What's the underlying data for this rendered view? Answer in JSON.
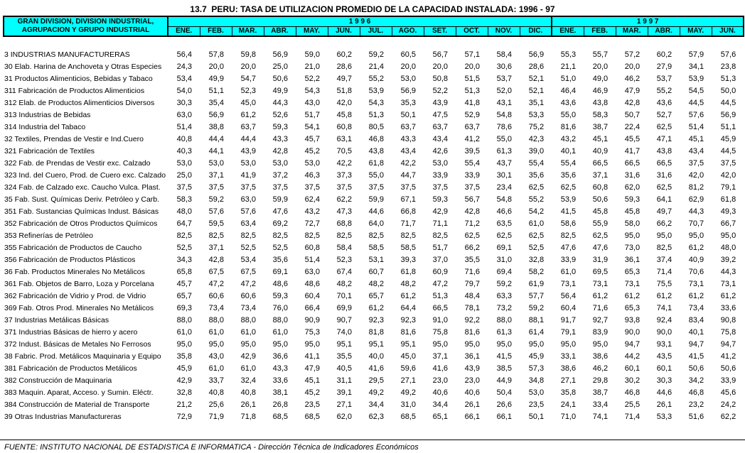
{
  "title": "13.7  PERU: TASA DE UTILIZACION PROMEDIO DE LA CAPACIDAD INSTALADA: 1996 - 97",
  "colors": {
    "header_bg": "#00FFFF",
    "text": "#000000",
    "page_bg": "#FFFFFF"
  },
  "table": {
    "row_header_line1": "GRAN DIVISION, DIVISION INDUSTRIAL,",
    "row_header_line2": "AGRUPACION Y GRUPO INDUSTRIAL",
    "year_groups": [
      {
        "year": "1 9 9 6",
        "months": [
          "ENE.",
          "FEB.",
          "MAR.",
          "ABR.",
          "MAY.",
          "JUN.",
          "JUL.",
          "AGO.",
          "SET.",
          "OCT.",
          "NOV.",
          "DIC."
        ]
      },
      {
        "year": "1 9 9 7",
        "months": [
          "ENE.",
          "FEB.",
          "MAR.",
          "ABR.",
          "MAY.",
          "JUN."
        ]
      }
    ],
    "rows": [
      {
        "label": "3 INDUSTRIAS MANUFACTURERAS",
        "values": [
          "56,4",
          "57,8",
          "59,8",
          "56,9",
          "59,0",
          "60,2",
          "59,2",
          "60,5",
          "56,7",
          "57,1",
          "58,4",
          "56,9",
          "55,3",
          "55,7",
          "57,2",
          "60,2",
          "57,9",
          "57,6"
        ]
      },
      {
        "label": "30 Elab. Harina de Anchoveta y Otras Especies",
        "values": [
          "24,3",
          "20,0",
          "20,0",
          "25,0",
          "21,0",
          "28,6",
          "21,4",
          "20,0",
          "20,0",
          "20,0",
          "30,6",
          "28,6",
          "21,1",
          "20,0",
          "20,0",
          "27,9",
          "34,1",
          "23,8"
        ]
      },
      {
        "label": "31 Productos Alimenticios, Bebidas y Tabaco",
        "values": [
          "53,4",
          "49,9",
          "54,7",
          "50,6",
          "52,2",
          "49,7",
          "55,2",
          "53,0",
          "50,8",
          "51,5",
          "53,7",
          "52,1",
          "51,0",
          "49,0",
          "46,2",
          "53,7",
          "53,9",
          "51,3"
        ]
      },
      {
        "label": "311 Fabricación de Productos Alimenticios",
        "values": [
          "54,0",
          "51,1",
          "52,3",
          "49,9",
          "54,3",
          "51,8",
          "53,9",
          "56,9",
          "52,2",
          "51,3",
          "52,0",
          "52,1",
          "46,4",
          "46,9",
          "47,9",
          "55,2",
          "54,5",
          "50,0"
        ]
      },
      {
        "label": "312 Elab. de Productos Alimenticios Diversos",
        "values": [
          "30,3",
          "35,4",
          "45,0",
          "44,3",
          "43,0",
          "42,0",
          "54,3",
          "35,3",
          "43,9",
          "41,8",
          "43,1",
          "35,1",
          "43,6",
          "43,8",
          "42,8",
          "43,6",
          "44,5",
          "44,5"
        ]
      },
      {
        "label": "313 Industrias de Bebidas",
        "values": [
          "63,0",
          "56,9",
          "61,2",
          "52,6",
          "51,7",
          "45,8",
          "51,3",
          "50,1",
          "47,5",
          "52,9",
          "54,8",
          "53,3",
          "55,0",
          "58,3",
          "50,7",
          "52,7",
          "57,6",
          "56,9"
        ]
      },
      {
        "label": "314 Industria del Tabaco",
        "values": [
          "51,4",
          "38,8",
          "63,7",
          "59,3",
          "54,1",
          "60,8",
          "80,5",
          "63,7",
          "63,7",
          "63,7",
          "78,6",
          "75,2",
          "81,6",
          "38,7",
          "22,4",
          "62,5",
          "51,4",
          "51,1"
        ]
      },
      {
        "label": "32 Textiles, Prendas de Vestir e Ind.Cuero",
        "values": [
          "40,8",
          "44,4",
          "44,4",
          "43,3",
          "45,7",
          "63,1",
          "46,8",
          "43,3",
          "43,4",
          "41,2",
          "55,0",
          "42,3",
          "43,2",
          "45,1",
          "45,5",
          "47,1",
          "45,1",
          "45,9"
        ]
      },
      {
        "label": "321 Fabricación de Textiles",
        "values": [
          "40,3",
          "44,1",
          "43,9",
          "42,8",
          "45,2",
          "70,5",
          "43,8",
          "43,4",
          "42,6",
          "39,5",
          "61,3",
          "39,0",
          "40,1",
          "40,9",
          "41,7",
          "43,8",
          "43,4",
          "44,5"
        ]
      },
      {
        "label": "322 Fab. de Prendas de Vestir exc. Calzado",
        "values": [
          "53,0",
          "53,0",
          "53,0",
          "53,0",
          "53,0",
          "42,2",
          "61,8",
          "42,2",
          "53,0",
          "55,4",
          "43,7",
          "55,4",
          "55,4",
          "66,5",
          "66,5",
          "66,5",
          "37,5",
          "37,5"
        ]
      },
      {
        "label": "323 Ind. del Cuero, Prod. de Cuero exc. Calzado",
        "values": [
          "25,0",
          "37,1",
          "41,9",
          "37,2",
          "46,3",
          "37,3",
          "55,0",
          "44,7",
          "33,9",
          "33,9",
          "30,1",
          "35,6",
          "35,6",
          "37,1",
          "31,6",
          "31,6",
          "42,0",
          "42,0"
        ]
      },
      {
        "label": "324 Fab. de Calzado exc. Caucho Vulca. Plast.",
        "values": [
          "37,5",
          "37,5",
          "37,5",
          "37,5",
          "37,5",
          "37,5",
          "37,5",
          "37,5",
          "37,5",
          "37,5",
          "23,4",
          "62,5",
          "62,5",
          "60,8",
          "62,0",
          "62,5",
          "81,2",
          "79,1"
        ]
      },
      {
        "label": "35 Fab. Sust. Químicas Deriv. Petróleo y Carb.",
        "values": [
          "58,3",
          "59,2",
          "63,0",
          "59,9",
          "62,4",
          "62,2",
          "59,9",
          "67,1",
          "59,3",
          "56,7",
          "54,8",
          "55,2",
          "53,9",
          "50,6",
          "59,3",
          "64,1",
          "62,9",
          "61,8"
        ]
      },
      {
        "label": "351 Fab. Sustancias Químicas Indust. Básicas",
        "values": [
          "48,0",
          "57,6",
          "57,6",
          "47,6",
          "43,2",
          "47,3",
          "44,6",
          "66,8",
          "42,9",
          "42,8",
          "46,6",
          "54,2",
          "41,5",
          "45,8",
          "45,8",
          "49,7",
          "44,3",
          "49,3"
        ]
      },
      {
        "label": "352 Fabricación de Otros Productos Químicos",
        "values": [
          "64,7",
          "59,5",
          "63,4",
          "69,2",
          "72,7",
          "68,8",
          "64,0",
          "71,7",
          "71,1",
          "71,2",
          "63,5",
          "61,0",
          "58,6",
          "55,9",
          "58,0",
          "66,2",
          "70,7",
          "66,7"
        ]
      },
      {
        "label": "353 Refinerías de Petróleo",
        "values": [
          "82,5",
          "82,5",
          "82,5",
          "82,5",
          "82,5",
          "82,5",
          "82,5",
          "82,5",
          "82,5",
          "62,5",
          "62,5",
          "62,5",
          "82,5",
          "62,5",
          "95,0",
          "95,0",
          "95,0",
          "95,0"
        ]
      },
      {
        "label": "355 Fabricación de Productos de Caucho",
        "values": [
          "52,5",
          "37,1",
          "52,5",
          "52,5",
          "60,8",
          "58,4",
          "58,5",
          "58,5",
          "51,7",
          "66,2",
          "69,1",
          "52,5",
          "47,6",
          "47,6",
          "73,0",
          "82,5",
          "61,2",
          "48,0"
        ]
      },
      {
        "label": "356 Fabricación de Productos Plásticos",
        "values": [
          "34,3",
          "42,8",
          "53,4",
          "35,6",
          "51,4",
          "52,3",
          "53,1",
          "39,3",
          "37,0",
          "35,5",
          "31,0",
          "32,8",
          "33,9",
          "31,9",
          "36,1",
          "37,4",
          "40,9",
          "39,2"
        ]
      },
      {
        "label": "36 Fab. Productos Minerales No Metálicos",
        "values": [
          "65,8",
          "67,5",
          "67,5",
          "69,1",
          "63,0",
          "67,4",
          "60,7",
          "61,8",
          "60,9",
          "71,6",
          "69,4",
          "58,2",
          "61,0",
          "69,5",
          "65,3",
          "71,4",
          "70,6",
          "44,3"
        ]
      },
      {
        "label": "361 Fab. Objetos de Barro, Loza y Porcelana",
        "values": [
          "45,7",
          "47,2",
          "47,2",
          "48,6",
          "48,6",
          "48,2",
          "48,2",
          "48,2",
          "47,2",
          "79,7",
          "59,2",
          "61,9",
          "73,1",
          "73,1",
          "73,1",
          "75,5",
          "73,1",
          "73,1"
        ]
      },
      {
        "label": "362 Fabricación de Vidrio y Prod. de Vidrio",
        "values": [
          "65,7",
          "60,6",
          "60,6",
          "59,3",
          "60,4",
          "70,1",
          "65,7",
          "61,2",
          "51,3",
          "48,4",
          "63,3",
          "57,7",
          "56,4",
          "61,2",
          "61,2",
          "61,2",
          "61,2",
          "61,2"
        ]
      },
      {
        "label": "369 Fab. Otros Prod. Minerales No Metálicos",
        "values": [
          "69,3",
          "73,4",
          "73,4",
          "76,0",
          "66,4",
          "69,9",
          "61,2",
          "64,4",
          "66,5",
          "78,1",
          "73,2",
          "59,2",
          "60,4",
          "71,6",
          "65,3",
          "74,1",
          "73,4",
          "33,6"
        ]
      },
      {
        "label": "37 Industrias Metálicas Básicas",
        "values": [
          "88,0",
          "88,0",
          "88,0",
          "88,0",
          "90,9",
          "90,7",
          "92,3",
          "92,3",
          "91,0",
          "92,2",
          "88,0",
          "88,1",
          "91,7",
          "92,7",
          "93,8",
          "92,4",
          "83,4",
          "90,8"
        ]
      },
      {
        "label": "371 Industrias Básicas de hierro y acero",
        "values": [
          "61,0",
          "61,0",
          "61,0",
          "61,0",
          "75,3",
          "74,0",
          "81,8",
          "81,6",
          "75,8",
          "81,6",
          "61,3",
          "61,4",
          "79,1",
          "83,9",
          "90,0",
          "90,0",
          "40,1",
          "75,8"
        ]
      },
      {
        "label": "372 Indust. Básicas de Metales No Ferrosos",
        "values": [
          "95,0",
          "95,0",
          "95,0",
          "95,0",
          "95,0",
          "95,1",
          "95,1",
          "95,1",
          "95,0",
          "95,0",
          "95,0",
          "95,0",
          "95,0",
          "95,0",
          "94,7",
          "93,1",
          "94,7",
          "94,7"
        ]
      },
      {
        "label": "38 Fabric. Prod. Metálicos Maquinaria y Equipo",
        "values": [
          "35,8",
          "43,0",
          "42,9",
          "36,6",
          "41,1",
          "35,5",
          "40,0",
          "45,0",
          "37,1",
          "36,1",
          "41,5",
          "45,9",
          "33,1",
          "38,6",
          "44,2",
          "43,5",
          "41,5",
          "41,2"
        ]
      },
      {
        "label": "381 Fabricación de Productos Metálicos",
        "values": [
          "45,9",
          "61,0",
          "61,0",
          "43,3",
          "47,9",
          "40,5",
          "41,6",
          "59,6",
          "41,6",
          "43,9",
          "38,5",
          "57,3",
          "38,6",
          "46,2",
          "60,1",
          "60,1",
          "50,6",
          "50,6"
        ]
      },
      {
        "label": "382 Construcción de Maquinaria",
        "values": [
          "42,9",
          "33,7",
          "32,4",
          "33,6",
          "45,1",
          "31,1",
          "29,5",
          "27,1",
          "23,0",
          "23,0",
          "44,9",
          "34,8",
          "27,1",
          "29,8",
          "30,2",
          "30,3",
          "34,2",
          "33,9"
        ]
      },
      {
        "label": "383 Maquin. Aparat, Acceso. y Sumin. Eléctr.",
        "values": [
          "32,8",
          "40,8",
          "40,8",
          "38,1",
          "45,2",
          "39,1",
          "49,2",
          "49,2",
          "40,6",
          "40,6",
          "50,4",
          "53,0",
          "35,8",
          "38,7",
          "46,8",
          "44,6",
          "46,8",
          "45,6"
        ]
      },
      {
        "label": "384 Construcción de Material de Transporte",
        "values": [
          "21,2",
          "25,6",
          "26,1",
          "26,8",
          "23,5",
          "27,1",
          "34,4",
          "31,0",
          "34,4",
          "26,1",
          "26,6",
          "23,5",
          "24,1",
          "33,4",
          "25,5",
          "26,1",
          "23,2",
          "24,2"
        ]
      },
      {
        "label": "39 Otras Industrias Manufactureras",
        "values": [
          "72,9",
          "71,9",
          "71,8",
          "68,5",
          "68,5",
          "62,0",
          "62,3",
          "68,5",
          "65,1",
          "66,1",
          "66,1",
          "50,1",
          "71,0",
          "74,1",
          "71,4",
          "53,3",
          "51,6",
          "62,2"
        ]
      }
    ]
  },
  "footer": "FUENTE: INSTITUTO NACIONAL DE ESTADISTICA E INFORMATICA - Dirección Técnica de Indicadores Económicos"
}
